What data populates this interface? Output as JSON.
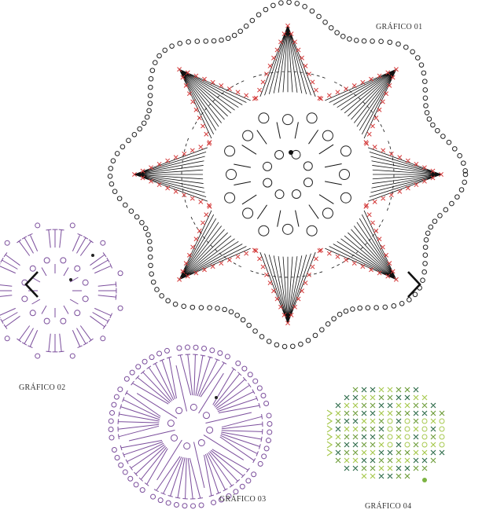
{
  "gallery": {
    "charts": [
      {
        "label": "GRÁFICO 01"
      },
      {
        "label": "GRÁFICO 02"
      },
      {
        "label": "GRÁFICO 03"
      },
      {
        "label": "GRÁFICO 04"
      }
    ]
  }
}
